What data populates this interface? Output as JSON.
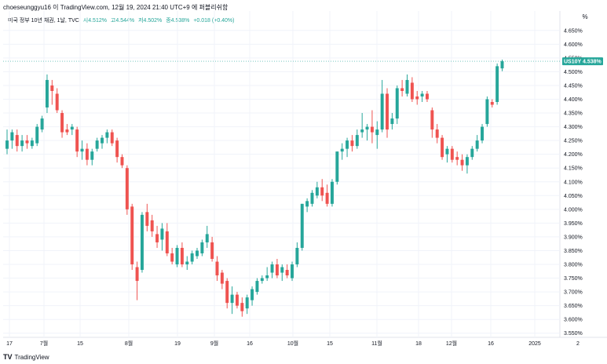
{
  "header": {
    "attribution": "choeseunggyu16 이 TradingView.com, 12월 19, 2024 21:40 UTC+9 에 퍼블리쉬함"
  },
  "legend": {
    "title": "미국 정부 10년 채권, 1날, TVC",
    "open": "시4.512%",
    "high": "고4.544%",
    "low": "저4.502%",
    "close": "종4.538%",
    "change": "+0.018 (+0.40%)"
  },
  "controls": {
    "percent_label": "%"
  },
  "price_badge": {
    "symbol": "US10Y",
    "value": "4.538%"
  },
  "footer": {
    "brand": "TradingView",
    "logo_text": "TV"
  },
  "colors": {
    "up": "#26a69a",
    "down": "#ef5350",
    "grid": "#f0f3fa",
    "axis_text": "#131722"
  },
  "chart_data": {
    "type": "candlestick",
    "title": "미국 정부 10년 채권, 1날, TVC",
    "y_unit": "%",
    "ylim": [
      3.535,
      4.675
    ],
    "y_ticks": [
      "4.650%",
      "4.600%",
      "4.550%",
      "4.500%",
      "4.450%",
      "4.400%",
      "4.350%",
      "4.300%",
      "4.250%",
      "4.200%",
      "4.150%",
      "4.100%",
      "4.050%",
      "4.000%",
      "3.950%",
      "3.900%",
      "3.850%",
      "3.800%",
      "3.750%",
      "3.700%",
      "3.650%",
      "3.600%",
      "3.550%"
    ],
    "x_ticks": [
      "17",
      "7월",
      "15",
      "8월",
      "19",
      "9월",
      "16",
      "10월",
      "15",
      "11월",
      "18",
      "12월",
      "16",
      "2025",
      "2"
    ],
    "grid": true,
    "series": [
      {
        "o": 4.22,
        "h": 4.29,
        "l": 4.2,
        "c": 4.25
      },
      {
        "o": 4.25,
        "h": 4.29,
        "l": 4.22,
        "c": 4.28
      },
      {
        "o": 4.27,
        "h": 4.29,
        "l": 4.21,
        "c": 4.23
      },
      {
        "o": 4.23,
        "h": 4.27,
        "l": 4.21,
        "c": 4.25
      },
      {
        "o": 4.25,
        "h": 4.27,
        "l": 4.22,
        "c": 4.24
      },
      {
        "o": 4.23,
        "h": 4.26,
        "l": 4.22,
        "c": 4.25
      },
      {
        "o": 4.24,
        "h": 4.31,
        "l": 4.23,
        "c": 4.3
      },
      {
        "o": 4.29,
        "h": 4.34,
        "l": 4.28,
        "c": 4.33
      },
      {
        "o": 4.37,
        "h": 4.49,
        "l": 4.35,
        "c": 4.47
      },
      {
        "o": 4.45,
        "h": 4.47,
        "l": 4.38,
        "c": 4.43
      },
      {
        "o": 4.42,
        "h": 4.44,
        "l": 4.35,
        "c": 4.36
      },
      {
        "o": 4.35,
        "h": 4.36,
        "l": 4.26,
        "c": 4.28
      },
      {
        "o": 4.29,
        "h": 4.31,
        "l": 4.27,
        "c": 4.28
      },
      {
        "o": 4.29,
        "h": 4.31,
        "l": 4.27,
        "c": 4.3
      },
      {
        "o": 4.29,
        "h": 4.3,
        "l": 4.19,
        "c": 4.21
      },
      {
        "o": 4.21,
        "h": 4.25,
        "l": 4.18,
        "c": 4.22
      },
      {
        "o": 4.22,
        "h": 4.24,
        "l": 4.16,
        "c": 4.18
      },
      {
        "o": 4.18,
        "h": 4.22,
        "l": 4.16,
        "c": 4.21
      },
      {
        "o": 4.22,
        "h": 4.26,
        "l": 4.21,
        "c": 4.25
      },
      {
        "o": 4.24,
        "h": 4.27,
        "l": 4.22,
        "c": 4.26
      },
      {
        "o": 4.26,
        "h": 4.29,
        "l": 4.24,
        "c": 4.28
      },
      {
        "o": 4.28,
        "h": 4.29,
        "l": 4.23,
        "c": 4.24
      },
      {
        "o": 4.25,
        "h": 4.26,
        "l": 4.17,
        "c": 4.19
      },
      {
        "o": 4.19,
        "h": 4.2,
        "l": 4.15,
        "c": 4.16
      },
      {
        "o": 4.15,
        "h": 4.16,
        "l": 3.98,
        "c": 4.0
      },
      {
        "o": 4.01,
        "h": 4.02,
        "l": 3.78,
        "c": 3.8
      },
      {
        "o": 3.79,
        "h": 3.81,
        "l": 3.67,
        "c": 3.74
      },
      {
        "o": 3.78,
        "h": 3.99,
        "l": 3.77,
        "c": 3.98
      },
      {
        "o": 3.99,
        "h": 4.02,
        "l": 3.92,
        "c": 3.94
      },
      {
        "o": 3.96,
        "h": 3.98,
        "l": 3.9,
        "c": 3.92
      },
      {
        "o": 3.91,
        "h": 3.94,
        "l": 3.86,
        "c": 3.88
      },
      {
        "o": 3.89,
        "h": 3.95,
        "l": 3.85,
        "c": 3.93
      },
      {
        "o": 3.92,
        "h": 3.95,
        "l": 3.83,
        "c": 3.84
      },
      {
        "o": 3.84,
        "h": 3.86,
        "l": 3.8,
        "c": 3.81
      },
      {
        "o": 3.8,
        "h": 3.87,
        "l": 3.79,
        "c": 3.86
      },
      {
        "o": 3.86,
        "h": 3.88,
        "l": 3.79,
        "c": 3.8
      },
      {
        "o": 3.8,
        "h": 3.83,
        "l": 3.78,
        "c": 3.81
      },
      {
        "o": 3.81,
        "h": 3.85,
        "l": 3.8,
        "c": 3.84
      },
      {
        "o": 3.83,
        "h": 3.86,
        "l": 3.82,
        "c": 3.85
      },
      {
        "o": 3.84,
        "h": 3.89,
        "l": 3.83,
        "c": 3.88
      },
      {
        "o": 3.88,
        "h": 3.94,
        "l": 3.86,
        "c": 3.91
      },
      {
        "o": 3.88,
        "h": 3.9,
        "l": 3.81,
        "c": 3.82
      },
      {
        "o": 3.81,
        "h": 3.83,
        "l": 3.74,
        "c": 3.76
      },
      {
        "o": 3.77,
        "h": 3.78,
        "l": 3.71,
        "c": 3.73
      },
      {
        "o": 3.74,
        "h": 3.75,
        "l": 3.64,
        "c": 3.66
      },
      {
        "o": 3.66,
        "h": 3.72,
        "l": 3.62,
        "c": 3.69
      },
      {
        "o": 3.69,
        "h": 3.7,
        "l": 3.64,
        "c": 3.65
      },
      {
        "o": 3.66,
        "h": 3.68,
        "l": 3.61,
        "c": 3.63
      },
      {
        "o": 3.64,
        "h": 3.69,
        "l": 3.62,
        "c": 3.68
      },
      {
        "o": 3.67,
        "h": 3.72,
        "l": 3.65,
        "c": 3.71
      },
      {
        "o": 3.7,
        "h": 3.75,
        "l": 3.69,
        "c": 3.74
      },
      {
        "o": 3.74,
        "h": 3.76,
        "l": 3.73,
        "c": 3.75
      },
      {
        "o": 3.75,
        "h": 3.79,
        "l": 3.74,
        "c": 3.76
      },
      {
        "o": 3.77,
        "h": 3.81,
        "l": 3.75,
        "c": 3.8
      },
      {
        "o": 3.8,
        "h": 3.82,
        "l": 3.75,
        "c": 3.76
      },
      {
        "o": 3.77,
        "h": 3.8,
        "l": 3.74,
        "c": 3.79
      },
      {
        "o": 3.78,
        "h": 3.8,
        "l": 3.75,
        "c": 3.76
      },
      {
        "o": 3.75,
        "h": 3.81,
        "l": 3.74,
        "c": 3.8
      },
      {
        "o": 3.8,
        "h": 3.88,
        "l": 3.79,
        "c": 3.86
      },
      {
        "o": 3.86,
        "h": 4.02,
        "l": 3.85,
        "c": 4.02
      },
      {
        "o": 4.01,
        "h": 4.04,
        "l": 3.99,
        "c": 4.03
      },
      {
        "o": 4.02,
        "h": 4.07,
        "l": 4.01,
        "c": 4.06
      },
      {
        "o": 4.05,
        "h": 4.1,
        "l": 4.04,
        "c": 4.08
      },
      {
        "o": 4.08,
        "h": 4.11,
        "l": 4.03,
        "c": 4.05
      },
      {
        "o": 4.06,
        "h": 4.09,
        "l": 4.01,
        "c": 4.02
      },
      {
        "o": 4.02,
        "h": 4.11,
        "l": 4.01,
        "c": 4.1
      },
      {
        "o": 4.1,
        "h": 4.21,
        "l": 4.09,
        "c": 4.21
      },
      {
        "o": 4.21,
        "h": 4.24,
        "l": 4.18,
        "c": 4.22
      },
      {
        "o": 4.22,
        "h": 4.26,
        "l": 4.19,
        "c": 4.25
      },
      {
        "o": 4.25,
        "h": 4.27,
        "l": 4.21,
        "c": 4.23
      },
      {
        "o": 4.23,
        "h": 4.29,
        "l": 4.22,
        "c": 4.27
      },
      {
        "o": 4.28,
        "h": 4.35,
        "l": 4.26,
        "c": 4.29
      },
      {
        "o": 4.29,
        "h": 4.31,
        "l": 4.25,
        "c": 4.3
      },
      {
        "o": 4.3,
        "h": 4.36,
        "l": 4.24,
        "c": 4.28
      },
      {
        "o": 4.27,
        "h": 4.32,
        "l": 4.22,
        "c": 4.29
      },
      {
        "o": 4.29,
        "h": 4.47,
        "l": 4.28,
        "c": 4.42
      },
      {
        "o": 4.42,
        "h": 4.44,
        "l": 4.26,
        "c": 4.29
      },
      {
        "o": 4.31,
        "h": 4.35,
        "l": 4.29,
        "c": 4.33
      },
      {
        "o": 4.33,
        "h": 4.45,
        "l": 4.31,
        "c": 4.44
      },
      {
        "o": 4.44,
        "h": 4.47,
        "l": 4.41,
        "c": 4.43
      },
      {
        "o": 4.42,
        "h": 4.49,
        "l": 4.41,
        "c": 4.47
      },
      {
        "o": 4.46,
        "h": 4.48,
        "l": 4.39,
        "c": 4.4
      },
      {
        "o": 4.41,
        "h": 4.43,
        "l": 4.38,
        "c": 4.4
      },
      {
        "o": 4.41,
        "h": 4.43,
        "l": 4.39,
        "c": 4.42
      },
      {
        "o": 4.42,
        "h": 4.43,
        "l": 4.39,
        "c": 4.4
      },
      {
        "o": 4.36,
        "h": 4.37,
        "l": 4.26,
        "c": 4.29
      },
      {
        "o": 4.29,
        "h": 4.31,
        "l": 4.24,
        "c": 4.26
      },
      {
        "o": 4.26,
        "h": 4.27,
        "l": 4.18,
        "c": 4.19
      },
      {
        "o": 4.2,
        "h": 4.23,
        "l": 4.17,
        "c": 4.22
      },
      {
        "o": 4.22,
        "h": 4.23,
        "l": 4.17,
        "c": 4.18
      },
      {
        "o": 4.19,
        "h": 4.21,
        "l": 4.16,
        "c": 4.18
      },
      {
        "o": 4.18,
        "h": 4.2,
        "l": 4.14,
        "c": 4.16
      },
      {
        "o": 4.16,
        "h": 4.2,
        "l": 4.13,
        "c": 4.19
      },
      {
        "o": 4.19,
        "h": 4.23,
        "l": 4.18,
        "c": 4.22
      },
      {
        "o": 4.22,
        "h": 4.27,
        "l": 4.21,
        "c": 4.25
      },
      {
        "o": 4.25,
        "h": 4.31,
        "l": 4.24,
        "c": 4.3
      },
      {
        "o": 4.31,
        "h": 4.41,
        "l": 4.3,
        "c": 4.4
      },
      {
        "o": 4.39,
        "h": 4.4,
        "l": 4.37,
        "c": 4.38
      },
      {
        "o": 4.39,
        "h": 4.53,
        "l": 4.38,
        "c": 4.52
      },
      {
        "o": 4.512,
        "h": 4.544,
        "l": 4.502,
        "c": 4.538
      }
    ]
  }
}
